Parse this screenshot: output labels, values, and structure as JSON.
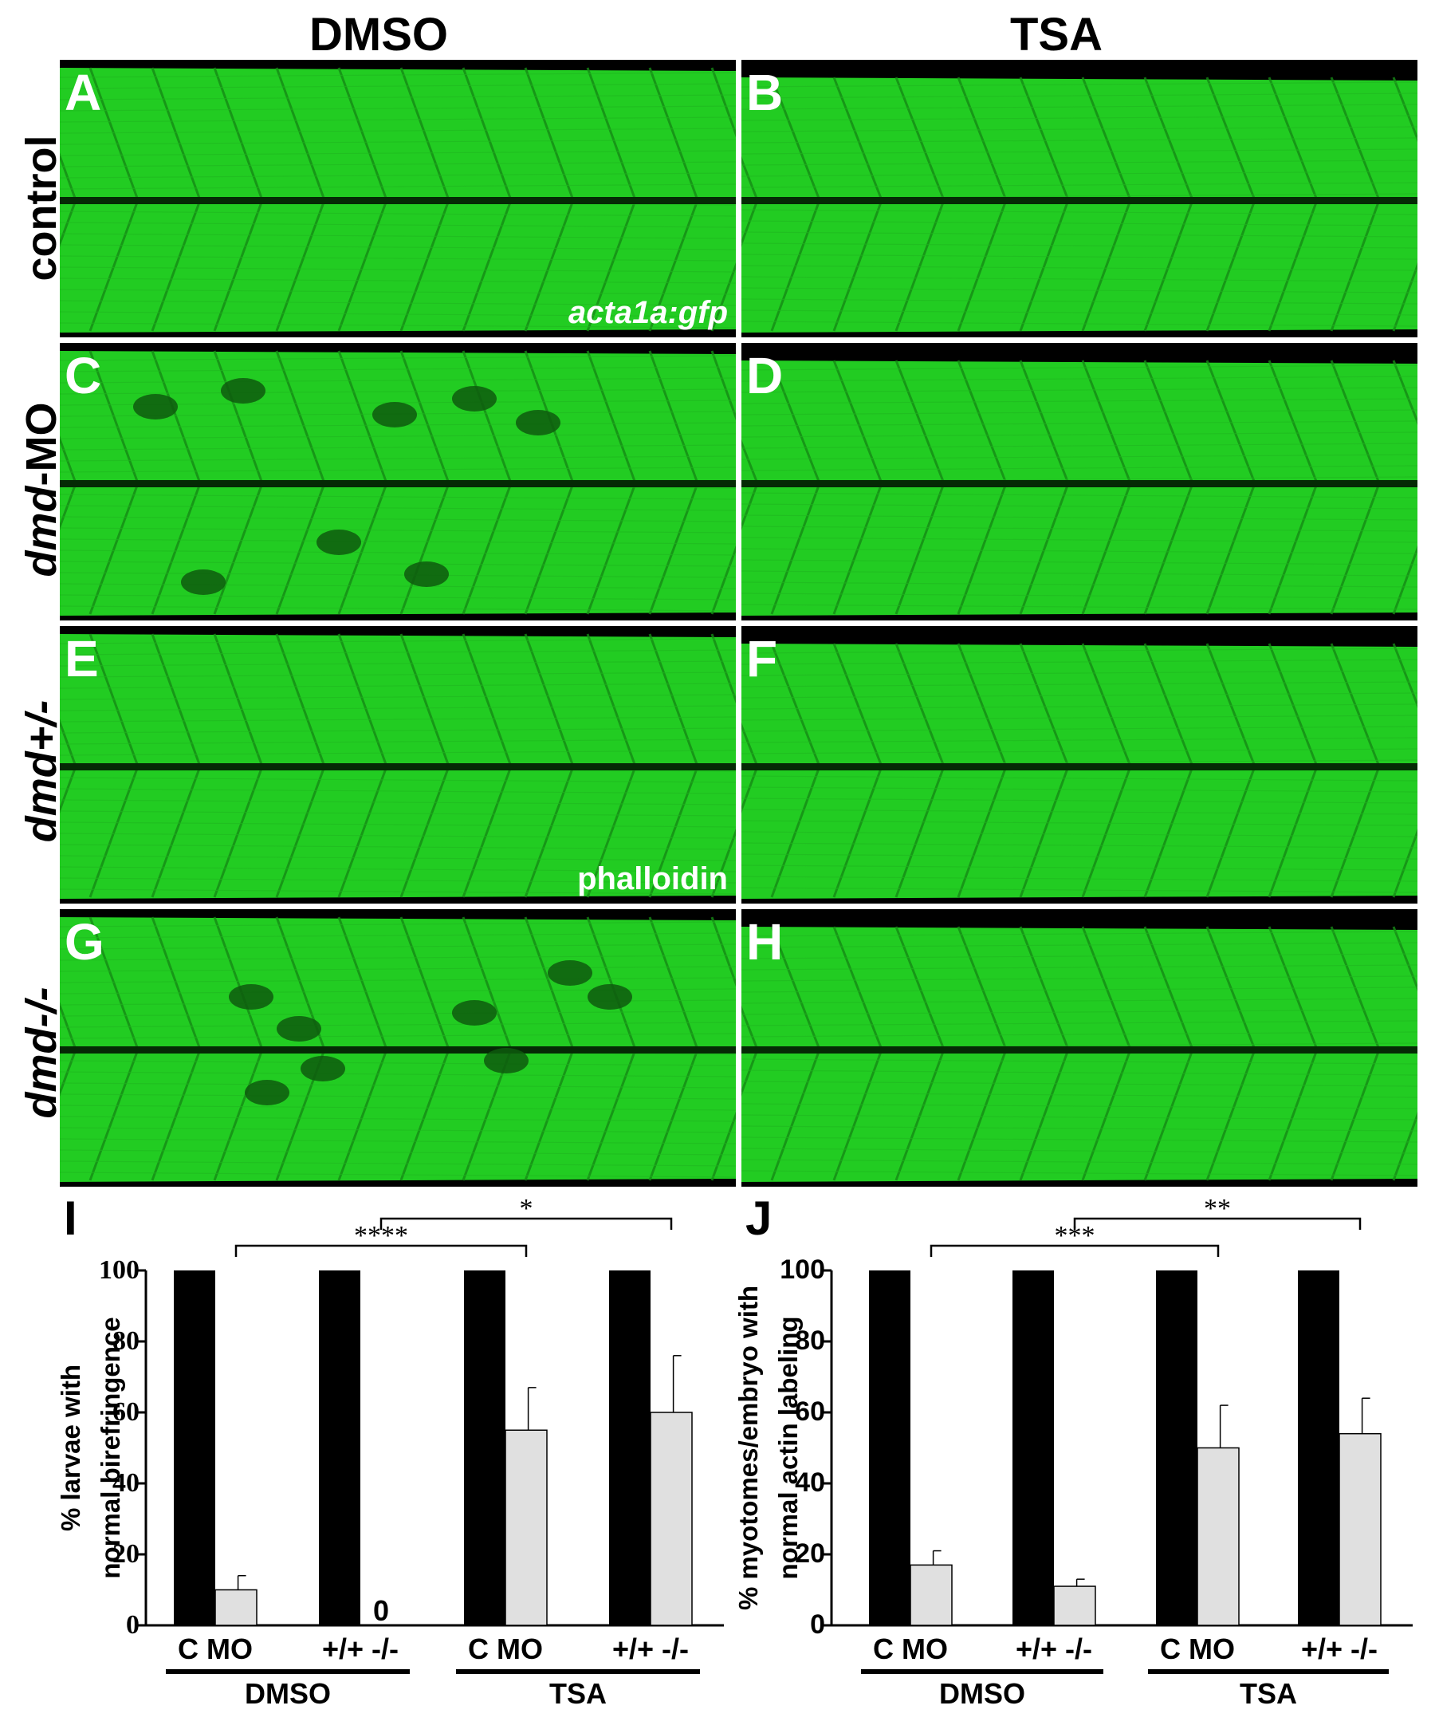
{
  "column_titles": {
    "left": "DMSO",
    "right": "TSA"
  },
  "row_labels": [
    {
      "prefix": "",
      "italic": "",
      "plain": "control"
    },
    {
      "prefix": "",
      "italic": "dmd",
      "plain": "-MO"
    },
    {
      "prefix": "",
      "italic": "dmd+/-",
      "plain": ""
    },
    {
      "prefix": "",
      "italic": "dmd-/-",
      "plain": ""
    }
  ],
  "panels": [
    {
      "label": "A",
      "marker": "acta1a:gfp"
    },
    {
      "label": "B",
      "marker": ""
    },
    {
      "label": "C",
      "marker": ""
    },
    {
      "label": "D",
      "marker": ""
    },
    {
      "label": "E",
      "marker": "phalloidin"
    },
    {
      "label": "F",
      "marker": ""
    },
    {
      "label": "G",
      "marker": ""
    },
    {
      "label": "H",
      "marker": ""
    }
  ],
  "colors": {
    "panel_green": "#22cc22",
    "bar_control": "#000000",
    "bar_treated": "#e0e0e0"
  },
  "chart_data": [
    {
      "type": "bar",
      "panel_label": "I",
      "ylabel_lines": [
        "% larvae with",
        "normal birefringence"
      ],
      "ylim": [
        0,
        100
      ],
      "yticks": [
        "0",
        "20",
        "40",
        "60",
        "80",
        "100"
      ],
      "categories": [
        "C MO",
        "+/+ -/-",
        "C MO",
        "+/+ -/-"
      ],
      "groups": [
        "DMSO",
        "TSA"
      ],
      "series": [
        {
          "values": [
            100,
            100,
            100,
            100
          ],
          "errors": [
            0,
            0,
            0,
            0
          ]
        },
        {
          "values": [
            10,
            0,
            55,
            60
          ],
          "errors": [
            4,
            0,
            12,
            16
          ]
        }
      ],
      "zero_label": "0",
      "significance": [
        {
          "from": 0,
          "to": 2,
          "label": "****"
        },
        {
          "from": 1,
          "to": 3,
          "label": "*"
        }
      ]
    },
    {
      "type": "bar",
      "panel_label": "J",
      "ylabel_lines": [
        "% myotomes/embryo with",
        "normal actin labeling"
      ],
      "ylim": [
        0,
        100
      ],
      "yticks": [
        "0",
        "20",
        "40",
        "60",
        "80",
        "100"
      ],
      "categories": [
        "C MO",
        "+/+ -/-",
        "C MO",
        "+/+ -/-"
      ],
      "groups": [
        "DMSO",
        "TSA"
      ],
      "series": [
        {
          "values": [
            100,
            100,
            100,
            100
          ],
          "errors": [
            0,
            0,
            0,
            0
          ]
        },
        {
          "values": [
            17,
            11,
            50,
            54
          ],
          "errors": [
            4,
            2,
            12,
            10
          ]
        }
      ],
      "zero_label": "",
      "significance": [
        {
          "from": 0,
          "to": 2,
          "label": "***"
        },
        {
          "from": 1,
          "to": 3,
          "label": "**"
        }
      ]
    }
  ]
}
